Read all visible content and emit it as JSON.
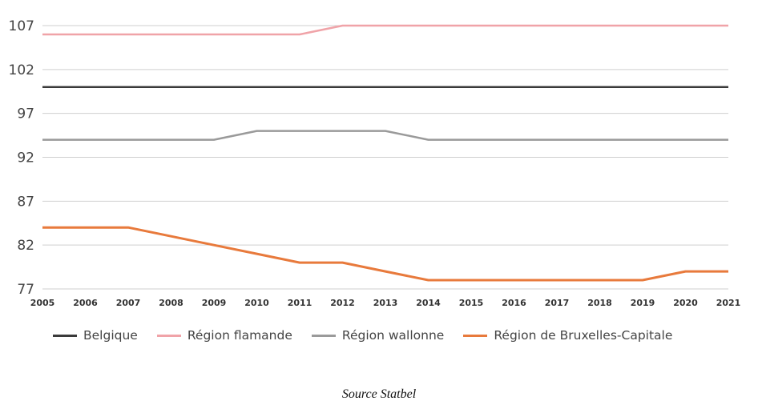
{
  "chart_data": {
    "type": "line",
    "title": "",
    "xlabel": "",
    "ylabel": "",
    "x": [
      "2005",
      "2006",
      "2007",
      "2008",
      "2009",
      "2010",
      "2011",
      "2012",
      "2013",
      "2014",
      "2015",
      "2016",
      "2017",
      "2018",
      "2019",
      "2020",
      "2021"
    ],
    "ylim": [
      77,
      107
    ],
    "yticks": [
      "107",
      "102",
      "97",
      "92",
      "87",
      "82",
      "77"
    ],
    "grid": "horizontal",
    "legend_position": "bottom",
    "series": [
      {
        "name": "Belgique",
        "color": "#3a3a3a",
        "values": [
          100,
          100,
          100,
          100,
          100,
          100,
          100,
          100,
          100,
          100,
          100,
          100,
          100,
          100,
          100,
          100,
          100
        ]
      },
      {
        "name": "Région flamande",
        "color": "#f0a3a8",
        "values": [
          106,
          106,
          106,
          106,
          106,
          106,
          106,
          107,
          107,
          107,
          107,
          107,
          107,
          107,
          107,
          107,
          107
        ]
      },
      {
        "name": "Région wallonne",
        "color": "#9a9a9a",
        "values": [
          94,
          94,
          94,
          94,
          94,
          95,
          95,
          95,
          95,
          94,
          94,
          94,
          94,
          94,
          94,
          94,
          94
        ]
      },
      {
        "name": "Région de Bruxelles-Capitale",
        "color": "#e87a3c",
        "values": [
          84,
          84,
          84,
          83,
          82,
          81,
          80,
          80,
          79,
          78,
          78,
          78,
          78,
          78,
          78,
          79,
          79
        ]
      }
    ]
  },
  "source": "Source Statbel"
}
